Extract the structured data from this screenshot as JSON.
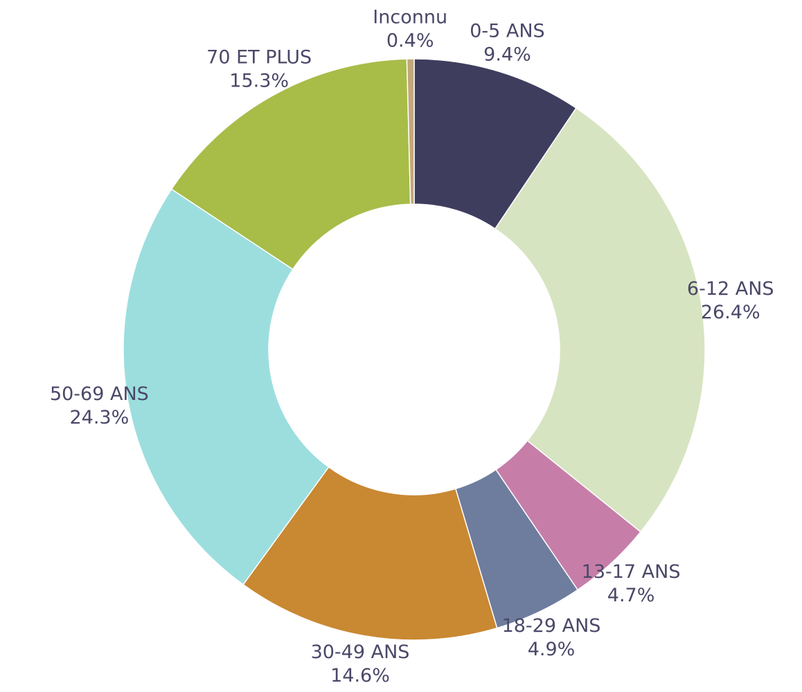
{
  "chart_data": {
    "type": "donut",
    "categories": [
      "0-5 ANS",
      "6-12 ANS",
      "13-17 ANS",
      "18-29 ANS",
      "30-49 ANS",
      "50-69 ANS",
      "70 ET PLUS",
      "Inconnu"
    ],
    "values": [
      9.4,
      26.4,
      4.7,
      4.9,
      14.6,
      24.3,
      15.3,
      0.4
    ],
    "value_labels": [
      "9.4%",
      "26.4%",
      "4.7%",
      "4.9%",
      "14.6%",
      "24.3%",
      "15.3%",
      "0.4%"
    ],
    "colors": [
      "#3f3d5e",
      "#d7e4c1",
      "#c67ea9",
      "#6e7d9e",
      "#c98832",
      "#9cdede",
      "#a8bc48",
      "#c4a77a"
    ]
  }
}
